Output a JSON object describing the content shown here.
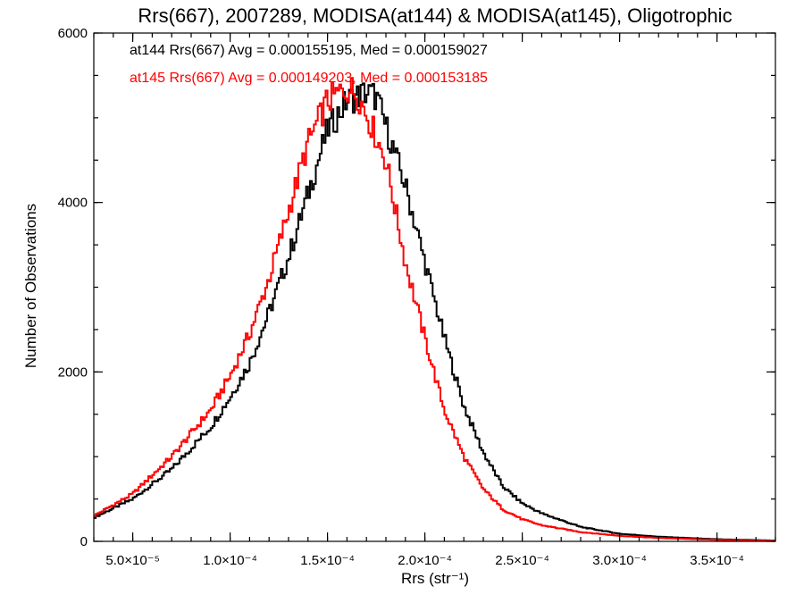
{
  "chart_data": {
    "type": "histogram",
    "title": "Rrs(667), 2007289, MODISA(at144) & MODISA(at145), Oligotrophic",
    "xlabel": "Rrs (str⁻¹)",
    "ylabel": "Number of Observations",
    "xlim": [
      3e-05,
      0.00038
    ],
    "ylim": [
      0,
      6000
    ],
    "x_ticks": [
      5e-05,
      0.0001,
      0.00015,
      0.0002,
      0.00025,
      0.0003,
      0.00035
    ],
    "x_tick_labels": [
      "5.0×10⁻⁵",
      "1.0×10⁻⁴",
      "1.5×10⁻⁴",
      "2.0×10⁻⁴",
      "2.5×10⁻⁴",
      "3.0×10⁻⁴",
      "3.5×10⁻⁴"
    ],
    "y_ticks": [
      0,
      2000,
      4000,
      6000
    ],
    "y_tick_labels": [
      "0",
      "2000",
      "4000",
      "6000"
    ],
    "annotations": [
      {
        "text": "at144 Rrs(667) Avg = 0.000155195, Med = 0.000159027",
        "color": "#000000"
      },
      {
        "text": "at145 Rrs(667) Avg = 0.000149203, Med = 0.000153185",
        "color": "#ff0000"
      }
    ],
    "series": [
      {
        "color": "#000000",
        "x": [
          3e-05,
          5e-05,
          7e-05,
          9e-05,
          0.0001,
          0.00011,
          0.00012,
          0.00013,
          0.00014,
          0.00015,
          0.00016,
          0.00017,
          0.000175,
          0.00018,
          0.00019,
          0.0002,
          0.00021,
          0.00022,
          0.00023,
          0.00024,
          0.00025,
          0.00026,
          0.00027,
          0.00028,
          0.0003,
          0.00032,
          0.00035,
          0.00038
        ],
        "y": [
          280,
          500,
          850,
          1350,
          1700,
          2100,
          2700,
          3350,
          4100,
          4850,
          5200,
          5300,
          5250,
          4900,
          4200,
          3300,
          2400,
          1600,
          1050,
          650,
          450,
          330,
          250,
          170,
          90,
          55,
          25,
          10
        ]
      },
      {
        "color": "#ff0000",
        "x": [
          3e-05,
          5e-05,
          7e-05,
          9e-05,
          0.0001,
          0.00011,
          0.00012,
          0.00013,
          0.00014,
          0.00015,
          0.00016,
          0.000165,
          0.00017,
          0.00018,
          0.00019,
          0.0002,
          0.00021,
          0.00022,
          0.00023,
          0.00024,
          0.00025,
          0.00026,
          0.00027,
          0.00028,
          0.0003,
          0.00032,
          0.00035,
          0.00038
        ],
        "y": [
          300,
          560,
          1000,
          1550,
          1950,
          2450,
          3100,
          3900,
          4700,
          5200,
          5350,
          5300,
          5050,
          4500,
          3300,
          2400,
          1550,
          1000,
          620,
          380,
          260,
          190,
          150,
          110,
          65,
          40,
          18,
          8
        ]
      }
    ]
  }
}
